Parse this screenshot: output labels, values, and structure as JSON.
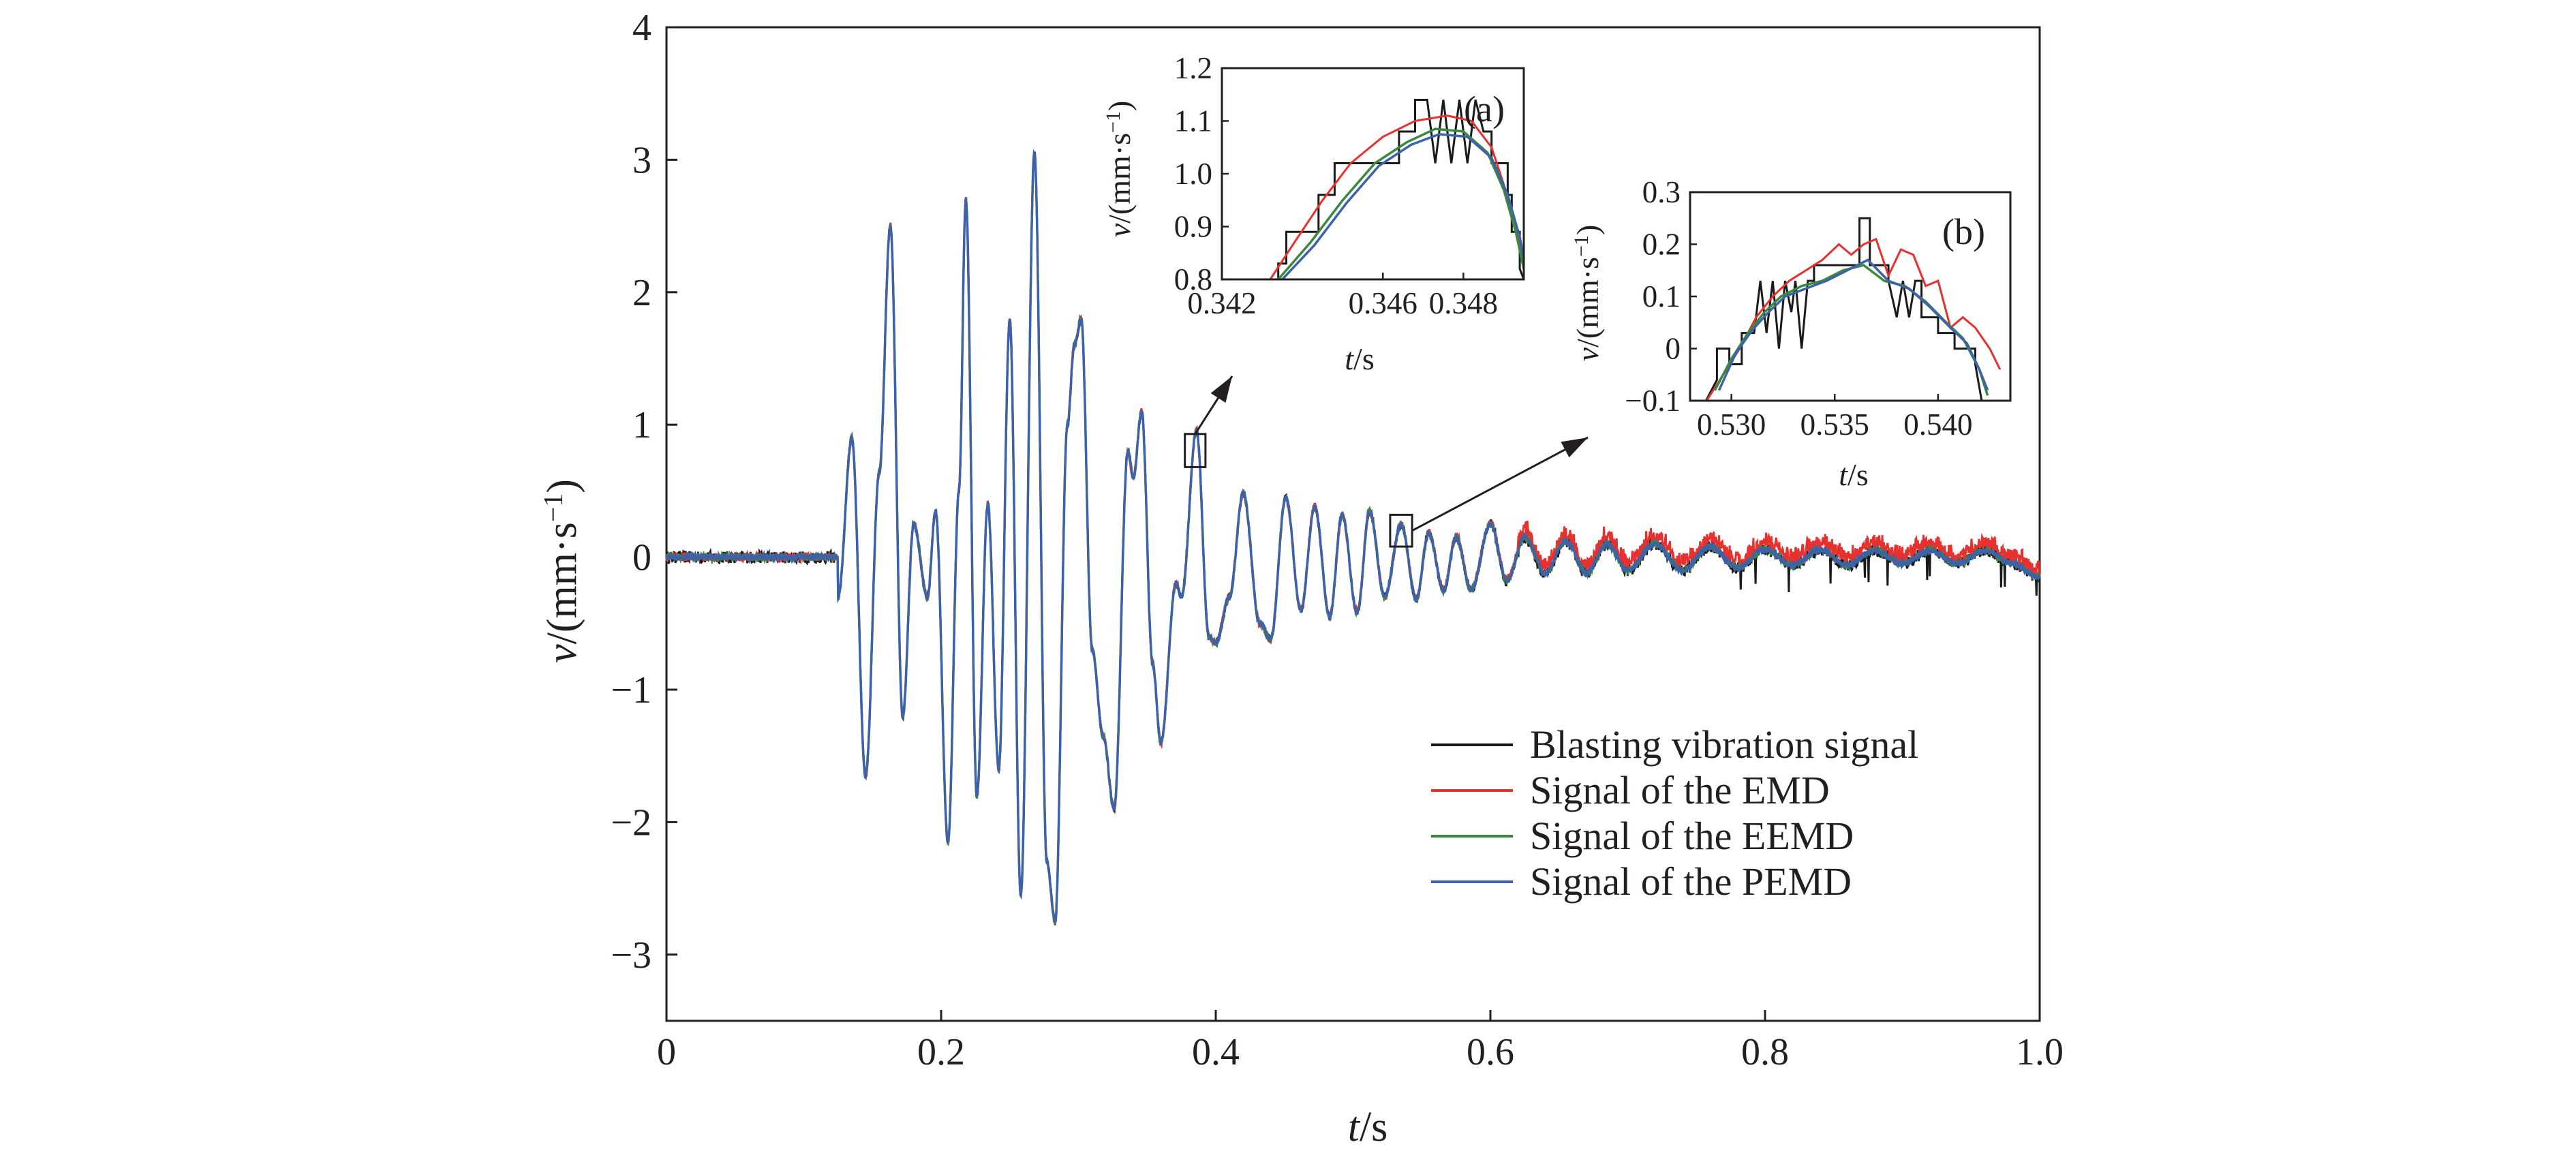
{
  "chart_data": {
    "type": "line",
    "xlabel": "t/s",
    "ylabel": "v/(mm·s⁻¹)",
    "xlim": [
      0,
      1.0
    ],
    "ylim": [
      -3.5,
      4
    ],
    "xticks": [
      0,
      0.2,
      0.4,
      0.6,
      0.8,
      1.0
    ],
    "xtick_labels": [
      "0",
      "0.2",
      "0.4",
      "0.6",
      "0.8",
      "1.0"
    ],
    "yticks": [
      -3,
      -2,
      -1,
      0,
      1,
      2,
      3,
      4
    ],
    "ytick_labels": [
      "−3",
      "−2",
      "−1",
      "0",
      "1",
      "2",
      "3",
      "4"
    ],
    "grid": false,
    "legend_position": "bottom-right",
    "series": [
      {
        "name": "Blasting vibration signal",
        "color": "#1a1a1a"
      },
      {
        "name": "Signal of the EMD",
        "color": "#e8312f"
      },
      {
        "name": "Signal of the EEMD",
        "color": "#3a8a3d"
      },
      {
        "name": "Signal of the PEMD",
        "color": "#3d62a8"
      }
    ],
    "peaks": [
      {
        "t": 0.125,
        "v": -0.3
      },
      {
        "t": 0.135,
        "v": 0.9
      },
      {
        "t": 0.145,
        "v": -1.65
      },
      {
        "t": 0.155,
        "v": 0.65
      },
      {
        "t": 0.163,
        "v": 2.5
      },
      {
        "t": 0.172,
        "v": -1.2
      },
      {
        "t": 0.18,
        "v": 0.25
      },
      {
        "t": 0.19,
        "v": -0.3
      },
      {
        "t": 0.196,
        "v": 0.35
      },
      {
        "t": 0.205,
        "v": -2.15
      },
      {
        "t": 0.213,
        "v": 0.5
      },
      {
        "t": 0.218,
        "v": 2.7
      },
      {
        "t": 0.226,
        "v": -1.8
      },
      {
        "t": 0.234,
        "v": 0.4
      },
      {
        "t": 0.242,
        "v": -1.6
      },
      {
        "t": 0.25,
        "v": 1.8
      },
      {
        "t": 0.258,
        "v": -2.55
      },
      {
        "t": 0.268,
        "v": 3.05
      },
      {
        "t": 0.277,
        "v": -2.3
      },
      {
        "t": 0.283,
        "v": -2.75
      },
      {
        "t": 0.292,
        "v": 1.0
      },
      {
        "t": 0.297,
        "v": 1.6
      },
      {
        "t": 0.302,
        "v": 1.8
      },
      {
        "t": 0.31,
        "v": -0.7
      },
      {
        "t": 0.318,
        "v": -1.35
      },
      {
        "t": 0.326,
        "v": -1.9
      },
      {
        "t": 0.336,
        "v": 0.8
      },
      {
        "t": 0.34,
        "v": 0.6
      },
      {
        "t": 0.346,
        "v": 1.1
      },
      {
        "t": 0.354,
        "v": -0.8
      },
      {
        "t": 0.36,
        "v": -1.4
      },
      {
        "t": 0.371,
        "v": -0.2
      },
      {
        "t": 0.375,
        "v": -0.3
      },
      {
        "t": 0.386,
        "v": 0.95
      },
      {
        "t": 0.395,
        "v": -0.6
      },
      {
        "t": 0.4,
        "v": -0.65
      },
      {
        "t": 0.41,
        "v": -0.3
      },
      {
        "t": 0.42,
        "v": 0.48
      },
      {
        "t": 0.432,
        "v": -0.5
      },
      {
        "t": 0.44,
        "v": -0.62
      },
      {
        "t": 0.451,
        "v": 0.45
      },
      {
        "t": 0.462,
        "v": -0.4
      },
      {
        "t": 0.472,
        "v": 0.38
      },
      {
        "t": 0.483,
        "v": -0.45
      },
      {
        "t": 0.492,
        "v": 0.32
      },
      {
        "t": 0.503,
        "v": -0.42
      },
      {
        "t": 0.512,
        "v": 0.35
      },
      {
        "t": 0.523,
        "v": -0.3
      },
      {
        "t": 0.535,
        "v": 0.25
      },
      {
        "t": 0.546,
        "v": -0.32
      },
      {
        "t": 0.555,
        "v": 0.18
      },
      {
        "t": 0.566,
        "v": -0.25
      },
      {
        "t": 0.575,
        "v": 0.15
      },
      {
        "t": 0.586,
        "v": -0.25
      },
      {
        "t": 0.6,
        "v": 0.25
      },
      {
        "t": 0.612,
        "v": -0.18
      },
      {
        "t": 0.625,
        "v": 0.15
      },
      {
        "t": 0.64,
        "v": -0.12
      },
      {
        "t": 0.655,
        "v": 0.12
      },
      {
        "t": 0.67,
        "v": -0.12
      },
      {
        "t": 0.685,
        "v": 0.1
      },
      {
        "t": 0.7,
        "v": -0.1
      },
      {
        "t": 0.72,
        "v": 0.1
      },
      {
        "t": 0.74,
        "v": -0.1
      },
      {
        "t": 0.76,
        "v": 0.08
      },
      {
        "t": 0.78,
        "v": -0.08
      },
      {
        "t": 0.8,
        "v": 0.06
      },
      {
        "t": 0.82,
        "v": -0.06
      },
      {
        "t": 0.84,
        "v": 0.05
      },
      {
        "t": 0.86,
        "v": -0.06
      },
      {
        "t": 0.88,
        "v": 0.05
      },
      {
        "t": 0.9,
        "v": -0.05
      },
      {
        "t": 0.92,
        "v": 0.05
      },
      {
        "t": 0.94,
        "v": -0.05
      },
      {
        "t": 0.96,
        "v": 0.05
      },
      {
        "t": 0.98,
        "v": -0.05
      },
      {
        "t": 1.0,
        "v": -0.15
      }
    ],
    "zoom_boxes": [
      {
        "panel": "(a)",
        "t_range": [
          0.3775,
          0.3925
        ],
        "v_range": [
          0.68,
          0.93
        ]
      },
      {
        "panel": "(b)",
        "t_range": [
          0.527,
          0.543
        ],
        "v_range": [
          0.08,
          0.32
        ]
      }
    ],
    "insets": [
      {
        "label": "(a)",
        "xlabel": "t/s",
        "ylabel": "v/(mm·s⁻¹)",
        "xlim": [
          0.342,
          0.3495
        ],
        "ylim": [
          0.8,
          1.2
        ],
        "xticks": [
          0.342,
          0.346,
          0.348
        ],
        "xtick_labels": [
          "0.342",
          "0.346",
          "0.348"
        ],
        "yticks": [
          0.8,
          0.9,
          1.0,
          1.1,
          1.2
        ],
        "ytick_labels": [
          "0.8",
          "0.9",
          "1.0",
          "1.1",
          "1.2"
        ],
        "series": {
          "blasting": [
            [
              0.342,
              0.78
            ],
            [
              0.3434,
              0.78
            ],
            [
              0.3434,
              0.83
            ],
            [
              0.3436,
              0.83
            ],
            [
              0.3436,
              0.89
            ],
            [
              0.3444,
              0.89
            ],
            [
              0.3444,
              0.96
            ],
            [
              0.3448,
              0.96
            ],
            [
              0.3448,
              1.02
            ],
            [
              0.3464,
              1.02
            ],
            [
              0.3464,
              1.08
            ],
            [
              0.3468,
              1.08
            ],
            [
              0.3468,
              1.14
            ],
            [
              0.3471,
              1.14
            ],
            [
              0.3473,
              1.02
            ],
            [
              0.3475,
              1.14
            ],
            [
              0.3477,
              1.02
            ],
            [
              0.3479,
              1.14
            ],
            [
              0.3481,
              1.02
            ],
            [
              0.3483,
              1.14
            ],
            [
              0.3485,
              1.08
            ],
            [
              0.3487,
              1.08
            ],
            [
              0.3487,
              1.02
            ],
            [
              0.3491,
              1.02
            ],
            [
              0.3491,
              0.96
            ],
            [
              0.3492,
              0.96
            ],
            [
              0.3492,
              0.89
            ],
            [
              0.3494,
              0.89
            ],
            [
              0.3494,
              0.82
            ],
            [
              0.3495,
              0.8
            ]
          ],
          "emd": [
            [
              0.3432,
              0.8
            ],
            [
              0.3438,
              0.87
            ],
            [
              0.3445,
              0.95
            ],
            [
              0.3452,
              1.02
            ],
            [
              0.346,
              1.07
            ],
            [
              0.3468,
              1.1
            ],
            [
              0.3476,
              1.11
            ],
            [
              0.3482,
              1.1
            ],
            [
              0.3487,
              1.05
            ],
            [
              0.349,
              0.98
            ],
            [
              0.3493,
              0.9
            ],
            [
              0.3495,
              0.82
            ]
          ],
          "eemd": [
            [
              0.3434,
              0.8
            ],
            [
              0.3442,
              0.87
            ],
            [
              0.345,
              0.95
            ],
            [
              0.3458,
              1.02
            ],
            [
              0.3466,
              1.06
            ],
            [
              0.3473,
              1.085
            ],
            [
              0.348,
              1.08
            ],
            [
              0.3486,
              1.04
            ],
            [
              0.349,
              0.97
            ],
            [
              0.3493,
              0.89
            ],
            [
              0.3495,
              0.82
            ]
          ],
          "pemd": [
            [
              0.3435,
              0.8
            ],
            [
              0.3443,
              0.865
            ],
            [
              0.3451,
              0.945
            ],
            [
              0.3459,
              1.015
            ],
            [
              0.3467,
              1.055
            ],
            [
              0.3474,
              1.075
            ],
            [
              0.3481,
              1.07
            ],
            [
              0.3487,
              1.03
            ],
            [
              0.3491,
              0.96
            ],
            [
              0.3494,
              0.88
            ],
            [
              0.3495,
              0.84
            ]
          ]
        }
      },
      {
        "label": "(b)",
        "xlabel": "t/s",
        "ylabel": "v/(mm·s⁻¹)",
        "xlim": [
          0.528,
          0.5435
        ],
        "ylim": [
          -0.1,
          0.3
        ],
        "xticks": [
          0.53,
          0.535,
          0.54
        ],
        "xtick_labels": [
          "0.530",
          "0.535",
          "0.540"
        ],
        "yticks": [
          -0.1,
          0,
          0.1,
          0.2,
          0.3
        ],
        "ytick_labels": [
          "−0.1",
          "0",
          "0.1",
          "0.2",
          "0.3"
        ],
        "series": {
          "blasting": [
            [
              0.5285,
              -0.12
            ],
            [
              0.5293,
              -0.06
            ],
            [
              0.5293,
              0.0
            ],
            [
              0.5299,
              0.0
            ],
            [
              0.5299,
              -0.03
            ],
            [
              0.5305,
              -0.03
            ],
            [
              0.5305,
              0.03
            ],
            [
              0.5311,
              0.03
            ],
            [
              0.5314,
              0.13
            ],
            [
              0.5317,
              0.03
            ],
            [
              0.532,
              0.13
            ],
            [
              0.5323,
              0.0
            ],
            [
              0.5326,
              0.13
            ],
            [
              0.5329,
              0.07
            ],
            [
              0.5331,
              0.13
            ],
            [
              0.5334,
              0.0
            ],
            [
              0.5337,
              0.13
            ],
            [
              0.534,
              0.13
            ],
            [
              0.534,
              0.16
            ],
            [
              0.5362,
              0.16
            ],
            [
              0.5362,
              0.25
            ],
            [
              0.5367,
              0.25
            ],
            [
              0.5367,
              0.16
            ],
            [
              0.5376,
              0.16
            ],
            [
              0.5376,
              0.13
            ],
            [
              0.538,
              0.06
            ],
            [
              0.5383,
              0.13
            ],
            [
              0.5386,
              0.06
            ],
            [
              0.5389,
              0.13
            ],
            [
              0.5392,
              0.13
            ],
            [
              0.5392,
              0.06
            ],
            [
              0.54,
              0.06
            ],
            [
              0.54,
              0.03
            ],
            [
              0.5408,
              0.03
            ],
            [
              0.5408,
              0.0
            ],
            [
              0.5418,
              0.0
            ],
            [
              0.5418,
              -0.03
            ],
            [
              0.5422,
              -0.12
            ]
          ],
          "emd": [
            [
              0.5288,
              -0.1
            ],
            [
              0.5296,
              -0.05
            ],
            [
              0.5304,
              0.0
            ],
            [
              0.5312,
              0.06
            ],
            [
              0.532,
              0.1
            ],
            [
              0.5328,
              0.13
            ],
            [
              0.5336,
              0.15
            ],
            [
              0.5344,
              0.17
            ],
            [
              0.5352,
              0.2
            ],
            [
              0.5358,
              0.18
            ],
            [
              0.5364,
              0.2
            ],
            [
              0.537,
              0.21
            ],
            [
              0.5376,
              0.14
            ],
            [
              0.5382,
              0.19
            ],
            [
              0.5388,
              0.18
            ],
            [
              0.5394,
              0.12
            ],
            [
              0.54,
              0.13
            ],
            [
              0.5406,
              0.04
            ],
            [
              0.5412,
              0.06
            ],
            [
              0.5418,
              0.04
            ],
            [
              0.5425,
              0.0
            ],
            [
              0.543,
              -0.04
            ]
          ],
          "eemd": [
            [
              0.5292,
              -0.08
            ],
            [
              0.53,
              -0.02
            ],
            [
              0.5308,
              0.03
            ],
            [
              0.5316,
              0.07
            ],
            [
              0.5324,
              0.1
            ],
            [
              0.5334,
              0.12
            ],
            [
              0.5344,
              0.13
            ],
            [
              0.5354,
              0.15
            ],
            [
              0.5364,
              0.16
            ],
            [
              0.5374,
              0.13
            ],
            [
              0.5384,
              0.12
            ],
            [
              0.5394,
              0.09
            ],
            [
              0.5404,
              0.05
            ],
            [
              0.5412,
              0.02
            ],
            [
              0.542,
              -0.04
            ],
            [
              0.5424,
              -0.09
            ]
          ],
          "pemd": [
            [
              0.5294,
              -0.08
            ],
            [
              0.5302,
              -0.01
            ],
            [
              0.531,
              0.035
            ],
            [
              0.5318,
              0.07
            ],
            [
              0.5326,
              0.1
            ],
            [
              0.5336,
              0.115
            ],
            [
              0.5346,
              0.13
            ],
            [
              0.5356,
              0.15
            ],
            [
              0.5366,
              0.17
            ],
            [
              0.5376,
              0.13
            ],
            [
              0.5386,
              0.115
            ],
            [
              0.5396,
              0.08
            ],
            [
              0.5406,
              0.04
            ],
            [
              0.5414,
              0.01
            ],
            [
              0.542,
              -0.04
            ],
            [
              0.5424,
              -0.08
            ]
          ]
        }
      }
    ]
  }
}
